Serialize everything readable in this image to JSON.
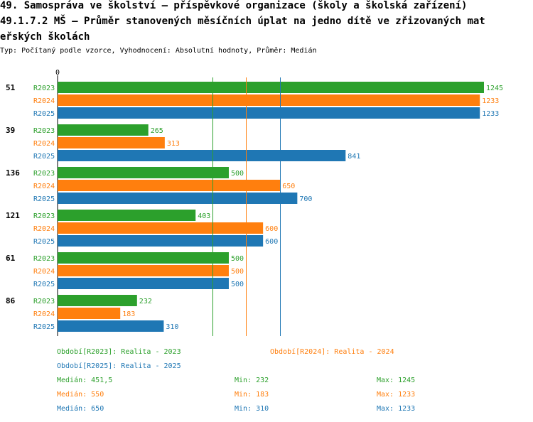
{
  "header": {
    "title_line1": "49. Samospráva ve školství – příspěvkové organizace (školy a školská zařízení)",
    "title_line2": "49.1.7.2 MŠ – Průměr stanovených měsíčních úplat na jedno dítě ve zřizovaných mat",
    "title_line3": "eřských školách",
    "subtitle": "Typ: Počítaný podle vzorce, Vyhodnocení: Absolutní hodnoty, Průměr: Medián"
  },
  "colors": {
    "R2023": "#2ca02c",
    "R2024": "#ff7f0e",
    "R2025": "#1f77b4"
  },
  "chart_data": {
    "type": "bar",
    "orientation": "horizontal",
    "axis_zero_label": "0",
    "xlim": [
      0,
      1300
    ],
    "series_names": [
      "R2023",
      "R2024",
      "R2025"
    ],
    "groups": [
      {
        "label": "51",
        "values": [
          1245,
          1233,
          1233
        ]
      },
      {
        "label": "39",
        "values": [
          265,
          313,
          841
        ]
      },
      {
        "label": "136",
        "values": [
          500,
          650,
          700
        ]
      },
      {
        "label": "121",
        "values": [
          403,
          600,
          600
        ]
      },
      {
        "label": "61",
        "values": [
          500,
          500,
          500
        ]
      },
      {
        "label": "86",
        "values": [
          232,
          183,
          310
        ]
      }
    ],
    "reference_lines": [
      {
        "series": "R2023",
        "value": 451.5
      },
      {
        "series": "R2024",
        "value": 550
      },
      {
        "series": "R2025",
        "value": 650
      }
    ]
  },
  "legend": {
    "period_r2023": "Období[R2023]: Realita - 2023",
    "period_r2024": "Období[R2024]: Realita - 2024",
    "period_r2025": "Období[R2025]: Realita - 2025",
    "stats": [
      {
        "median": "Medián: 451,5",
        "min": "Min: 232",
        "max": "Max: 1245"
      },
      {
        "median": "Medián: 550",
        "min": "Min: 183",
        "max": "Max: 1233"
      },
      {
        "median": "Medián: 650",
        "min": "Min: 310",
        "max": "Max: 1233"
      }
    ]
  }
}
